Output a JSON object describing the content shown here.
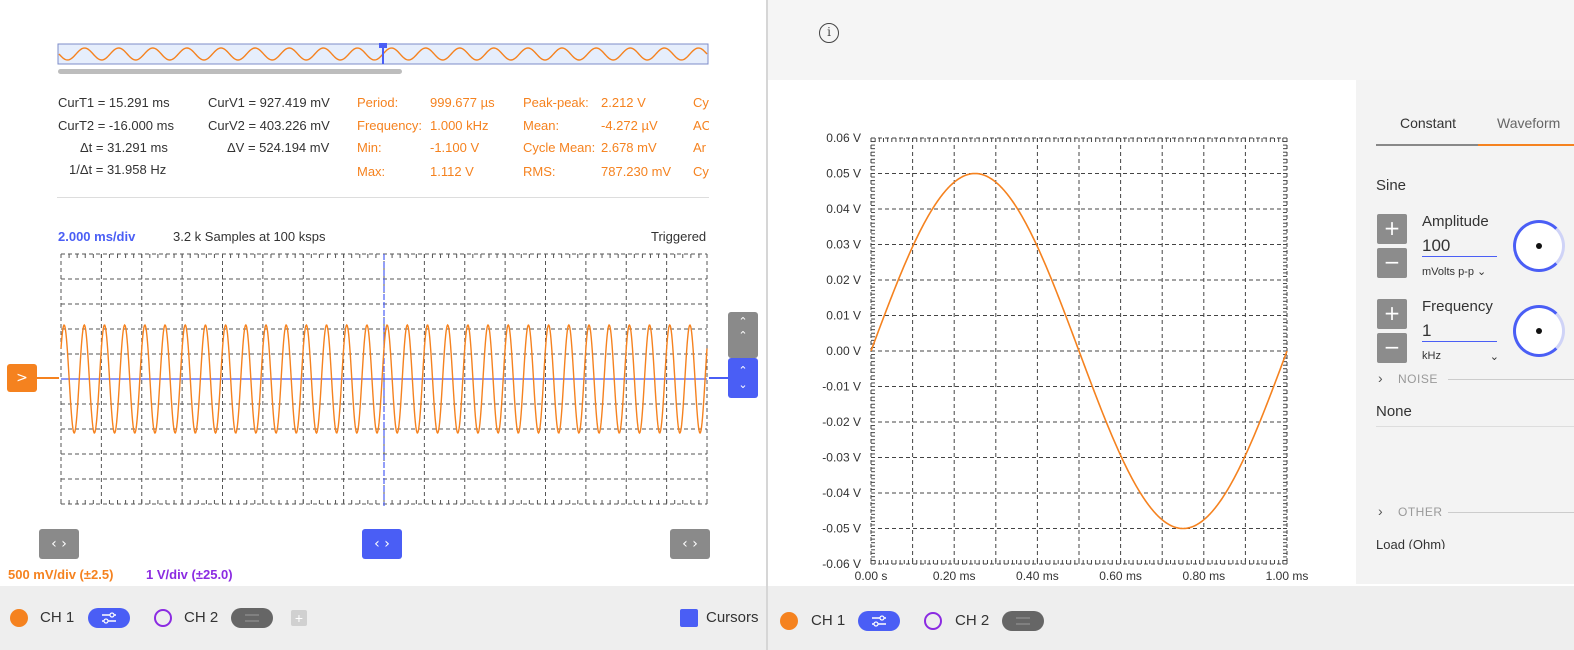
{
  "colors": {
    "ch1": "#f5821f",
    "ch2": "#8b2be2",
    "accent_blue": "#4a5ef5",
    "grid": "#555555"
  },
  "overview": {},
  "measurements": {
    "cursors": [
      {
        "label": "CurT1 = 15.291 ms"
      },
      {
        "label": "CurT2 = -16.000 ms"
      },
      {
        "label": "Δt = 31.291 ms"
      },
      {
        "label": "1/Δt = 31.958 Hz"
      }
    ],
    "volts": [
      {
        "label": "CurV1 = 927.419 mV"
      },
      {
        "label": "CurV2 = 403.226 mV"
      },
      {
        "label": "ΔV = 524.194 mV"
      }
    ],
    "col1": [
      {
        "name": "Period:",
        "value": "999.677 µs"
      },
      {
        "name": "Frequency:",
        "value": "1.000 kHz"
      },
      {
        "name": "Min:",
        "value": "-1.100 V"
      },
      {
        "name": "Max:",
        "value": "1.112 V"
      }
    ],
    "col2": [
      {
        "name": "Peak-peak:",
        "value": "2.212 V"
      },
      {
        "name": "Mean:",
        "value": "-4.272 µV"
      },
      {
        "name": "Cycle Mean:",
        "value": "2.678 mV"
      },
      {
        "name": "RMS:",
        "value": "787.230 mV"
      }
    ],
    "col3": [
      "Cy",
      "AC",
      "Ar",
      "Cy"
    ]
  },
  "scope": {
    "timebase": "2.000 ms/div",
    "samples": "3.2 k Samples at 100 ksps",
    "status": "Triggered",
    "ch1_scale": "500 mV/div (±2.5)",
    "ch2_scale": "1 V/div (±25.0)",
    "cycles_visible": 32
  },
  "left_bar": {
    "ch1": "CH 1",
    "ch2": "CH 2",
    "add": "+",
    "cursors": "Cursors"
  },
  "right_bar": {
    "ch1": "CH 1",
    "ch2": "CH 2"
  },
  "info_icon": "i",
  "siggen": {
    "tabs": [
      "Constant",
      "Waveform"
    ],
    "waveform": "Sine",
    "amplitude_label": "Amplitude",
    "amplitude_value": "100",
    "amplitude_unit": "mVolts p-p",
    "frequency_label": "Frequency",
    "frequency_value": "1",
    "frequency_unit": "kHz",
    "noise_header": "NOISE",
    "noise_value": "None",
    "other_header": "OTHER",
    "load_label": "Load (Ohm)"
  },
  "chart_data": {
    "type": "line",
    "title": "",
    "xlabel": "",
    "ylabel": "",
    "xlim": [
      0,
      1.0
    ],
    "ylim": [
      -0.06,
      0.06
    ],
    "x_ticks": [
      "0.00 s",
      "0.20 ms",
      "0.40 ms",
      "0.60 ms",
      "0.80 ms",
      "1.00 ms"
    ],
    "y_ticks": [
      "0.06 V",
      "0.05 V",
      "0.04 V",
      "0.03 V",
      "0.02 V",
      "0.01 V",
      "0.00 V",
      "-0.01 V",
      "-0.02 V",
      "-0.03 V",
      "-0.04 V",
      "-0.05 V",
      "-0.06 V"
    ],
    "grid": true,
    "series": [
      {
        "amplitude": 0.05,
        "frequency_khz": 1,
        "color": "#f5821f"
      }
    ]
  }
}
